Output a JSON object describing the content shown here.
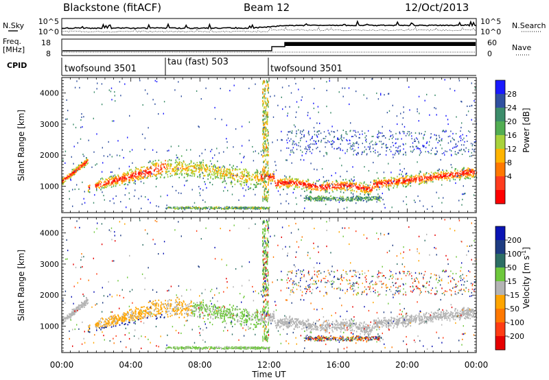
{
  "header": {
    "title": "Blackstone (fitACF)",
    "beam": "Beam 12",
    "date": "12/Oct/2013"
  },
  "side_labels": {
    "nsky": "N.Sky",
    "nsearch": "N.Search",
    "freq_line1": "Freq.",
    "freq_line2": "[MHz]",
    "nave": "Nave",
    "cpid": "CPID"
  },
  "noise_panel": {
    "ticks_left": [
      "10^5",
      "10^0"
    ],
    "ticks_right": [
      "10^5",
      "10^0"
    ]
  },
  "freq_panel": {
    "ticks_left": [
      "18",
      "8"
    ],
    "ticks_right": [
      "60",
      "0"
    ]
  },
  "cpid_segments": [
    {
      "label": "twofsound 3501",
      "start_hour": 0
    },
    {
      "label": "tau (fast) 503",
      "start_hour": 6
    },
    {
      "label": "twofsound 3501",
      "start_hour": 12
    }
  ],
  "xaxis": {
    "label": "Time UT",
    "ticks": [
      "00:00",
      "04:00",
      "08:00",
      "12:00",
      "16:00",
      "20:00",
      "00:00"
    ]
  },
  "chart_data": [
    {
      "type": "heatmap",
      "title": "",
      "xlabel": "Time UT",
      "ylabel": "Slant Range [km]",
      "x_range_hours": [
        0,
        24
      ],
      "ylim": [
        150,
        4500
      ],
      "yticks": [
        "4000",
        "3000",
        "2000",
        "1000"
      ],
      "colorbar_label": "Power [dB]",
      "colorbar_ticks": [
        "28",
        "24",
        "20",
        "16",
        "12",
        "8",
        "4"
      ],
      "colors": [
        "#1a1aff",
        "#3050a0",
        "#3c8c6a",
        "#52ad52",
        "#a8d23c",
        "#ffb400",
        "#ff7800",
        "#ff3c1e",
        "#ff0000"
      ]
    },
    {
      "type": "heatmap",
      "title": "",
      "xlabel": "Time UT",
      "ylabel": "Slant Range [km]",
      "x_range_hours": [
        0,
        24
      ],
      "ylim": [
        150,
        4500
      ],
      "yticks": [
        "4000",
        "3000",
        "2000",
        "1000"
      ],
      "colorbar_label": "Velocity [m s^-1]",
      "colorbar_ticks": [
        "200",
        "100",
        "50",
        "15",
        "-15",
        "-50",
        "-100",
        "-200"
      ],
      "colors": [
        "#0a14b4",
        "#1e3c82",
        "#2d6e64",
        "#6ec83c",
        "#b4b4b4",
        "#ffa500",
        "#ff7800",
        "#ff3c14",
        "#e60000"
      ]
    }
  ]
}
